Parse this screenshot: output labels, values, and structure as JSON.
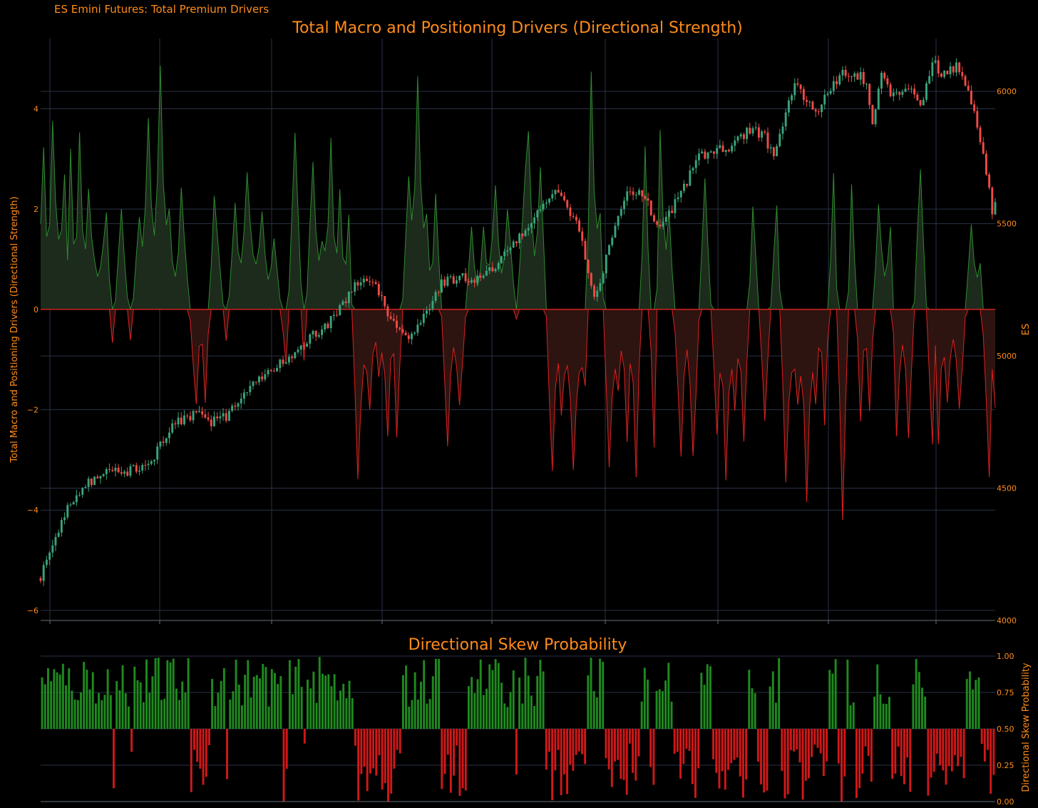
{
  "page": {
    "suptitle": "ES Emini Futures: Total Premium Drivers"
  },
  "colors": {
    "background": "#000000",
    "text": "#ff8c1a",
    "grid": "#2a3246",
    "positive": "#2e8b2e",
    "positive_fill": "#1c2b1c",
    "negative": "#e02020",
    "negative_fill": "#2e1410",
    "candle_up": "#3aa37a",
    "candle_down": "#ef4b46"
  },
  "chart_data": [
    {
      "type": "area",
      "title": "Total Macro and Positioning Drivers (Directional Strength)",
      "ylabel": "Total Macro and Positioning Drivers (Directional Strength)",
      "ylim": [
        -6.2,
        5.4
      ],
      "yticks": [
        4,
        2,
        0,
        -2,
        -4,
        -6
      ],
      "ytick_labels": [
        "4",
        "2",
        "0",
        "−2",
        "−4",
        "−6"
      ],
      "grid": true,
      "n_points": 320,
      "peaks": [
        {
          "i": 1,
          "v": 3.4
        },
        {
          "i": 4,
          "v": 4.0
        },
        {
          "i": 8,
          "v": 2.6
        },
        {
          "i": 10,
          "v": 3.3
        },
        {
          "i": 13,
          "v": 3.6
        },
        {
          "i": 16,
          "v": 2.3
        },
        {
          "i": 22,
          "v": 1.9
        },
        {
          "i": 24,
          "v": -0.7
        },
        {
          "i": 27,
          "v": 1.9
        },
        {
          "i": 30,
          "v": -0.6
        },
        {
          "i": 33,
          "v": 1.9
        },
        {
          "i": 36,
          "v": 3.8
        },
        {
          "i": 40,
          "v": 4.8
        },
        {
          "i": 43,
          "v": 2.0
        },
        {
          "i": 47,
          "v": 2.3
        },
        {
          "i": 52,
          "v": -1.9
        },
        {
          "i": 55,
          "v": -1.8
        },
        {
          "i": 58,
          "v": 2.2
        },
        {
          "i": 62,
          "v": -0.6
        },
        {
          "i": 65,
          "v": 2.0
        },
        {
          "i": 69,
          "v": 2.8
        },
        {
          "i": 74,
          "v": 2.0
        },
        {
          "i": 78,
          "v": 1.5
        },
        {
          "i": 82,
          "v": -1.1
        },
        {
          "i": 85,
          "v": 3.4
        },
        {
          "i": 88,
          "v": -1.0
        },
        {
          "i": 91,
          "v": 3.0
        },
        {
          "i": 94,
          "v": 1.4
        },
        {
          "i": 97,
          "v": 3.3
        },
        {
          "i": 100,
          "v": 2.5
        },
        {
          "i": 103,
          "v": 1.8
        },
        {
          "i": 106,
          "v": -3.3
        },
        {
          "i": 110,
          "v": -2.0
        },
        {
          "i": 113,
          "v": -1.3
        },
        {
          "i": 116,
          "v": -2.6
        },
        {
          "i": 119,
          "v": -2.4
        },
        {
          "i": 123,
          "v": 2.8
        },
        {
          "i": 126,
          "v": 4.9
        },
        {
          "i": 129,
          "v": 2.0
        },
        {
          "i": 132,
          "v": 2.3
        },
        {
          "i": 136,
          "v": -2.6
        },
        {
          "i": 140,
          "v": -2.0
        },
        {
          "i": 144,
          "v": 1.7
        },
        {
          "i": 148,
          "v": 1.6
        },
        {
          "i": 152,
          "v": 2.5
        },
        {
          "i": 156,
          "v": 2.0
        },
        {
          "i": 159,
          "v": -0.2
        },
        {
          "i": 163,
          "v": 3.7
        },
        {
          "i": 167,
          "v": 3.0
        },
        {
          "i": 171,
          "v": -3.3
        },
        {
          "i": 174,
          "v": -2.2
        },
        {
          "i": 178,
          "v": -3.2
        },
        {
          "i": 182,
          "v": -1.5
        },
        {
          "i": 184,
          "v": 4.6
        },
        {
          "i": 187,
          "v": 2.0
        },
        {
          "i": 190,
          "v": -3.3
        },
        {
          "i": 193,
          "v": -1.6
        },
        {
          "i": 196,
          "v": -2.5
        },
        {
          "i": 199,
          "v": -3.3
        },
        {
          "i": 202,
          "v": 3.2
        },
        {
          "i": 205,
          "v": -2.8
        },
        {
          "i": 207,
          "v": 3.7
        },
        {
          "i": 210,
          "v": 2.0
        },
        {
          "i": 214,
          "v": -2.9
        },
        {
          "i": 218,
          "v": -3.0
        },
        {
          "i": 222,
          "v": 2.6
        },
        {
          "i": 226,
          "v": -2.4
        },
        {
          "i": 229,
          "v": -3.5
        },
        {
          "i": 232,
          "v": -2.0
        },
        {
          "i": 235,
          "v": -2.7
        },
        {
          "i": 238,
          "v": 2.1
        },
        {
          "i": 242,
          "v": -2.1
        },
        {
          "i": 246,
          "v": 2.2
        },
        {
          "i": 249,
          "v": -3.3
        },
        {
          "i": 253,
          "v": -1.8
        },
        {
          "i": 256,
          "v": -3.8
        },
        {
          "i": 259,
          "v": -2.0
        },
        {
          "i": 262,
          "v": -2.3
        },
        {
          "i": 265,
          "v": 2.7
        },
        {
          "i": 268,
          "v": -4.1
        },
        {
          "i": 271,
          "v": 2.6
        },
        {
          "i": 274,
          "v": -2.2
        },
        {
          "i": 277,
          "v": -2.0
        },
        {
          "i": 280,
          "v": 2.2
        },
        {
          "i": 284,
          "v": 1.6
        },
        {
          "i": 286,
          "v": -2.6
        },
        {
          "i": 290,
          "v": -2.5
        },
        {
          "i": 294,
          "v": 2.8
        },
        {
          "i": 298,
          "v": -2.7
        },
        {
          "i": 300,
          "v": -2.6
        },
        {
          "i": 303,
          "v": -1.9
        },
        {
          "i": 307,
          "v": -2.1
        },
        {
          "i": 311,
          "v": 1.8
        },
        {
          "i": 314,
          "v": 0.9
        },
        {
          "i": 317,
          "v": -3.3
        },
        {
          "i": 319,
          "v": -1.9
        }
      ]
    },
    {
      "type": "line",
      "ylabel": "ES",
      "ylim": [
        4000,
        6200
      ],
      "yticks": [
        6000,
        5500,
        5000,
        4500,
        4000
      ],
      "ytick_labels": [
        "6000",
        "5500",
        "5000",
        "4500",
        "4000"
      ],
      "waypoints": [
        {
          "i": 0,
          "v": 4160
        },
        {
          "i": 5,
          "v": 4310
        },
        {
          "i": 10,
          "v": 4450
        },
        {
          "i": 15,
          "v": 4520
        },
        {
          "i": 20,
          "v": 4550
        },
        {
          "i": 26,
          "v": 4560
        },
        {
          "i": 32,
          "v": 4570
        },
        {
          "i": 38,
          "v": 4620
        },
        {
          "i": 44,
          "v": 4740
        },
        {
          "i": 52,
          "v": 4780
        },
        {
          "i": 57,
          "v": 4750
        },
        {
          "i": 62,
          "v": 4770
        },
        {
          "i": 68,
          "v": 4860
        },
        {
          "i": 75,
          "v": 4920
        },
        {
          "i": 82,
          "v": 4990
        },
        {
          "i": 88,
          "v": 5050
        },
        {
          "i": 95,
          "v": 5110
        },
        {
          "i": 100,
          "v": 5180
        },
        {
          "i": 103,
          "v": 5230
        },
        {
          "i": 108,
          "v": 5310
        },
        {
          "i": 113,
          "v": 5240
        },
        {
          "i": 118,
          "v": 5120
        },
        {
          "i": 123,
          "v": 5060
        },
        {
          "i": 128,
          "v": 5160
        },
        {
          "i": 134,
          "v": 5270
        },
        {
          "i": 140,
          "v": 5300
        },
        {
          "i": 146,
          "v": 5290
        },
        {
          "i": 152,
          "v": 5340
        },
        {
          "i": 158,
          "v": 5420
        },
        {
          "i": 163,
          "v": 5490
        },
        {
          "i": 168,
          "v": 5580
        },
        {
          "i": 172,
          "v": 5630
        },
        {
          "i": 176,
          "v": 5560
        },
        {
          "i": 180,
          "v": 5480
        },
        {
          "i": 185,
          "v": 5220
        },
        {
          "i": 188,
          "v": 5320
        },
        {
          "i": 192,
          "v": 5500
        },
        {
          "i": 196,
          "v": 5620
        },
        {
          "i": 202,
          "v": 5600
        },
        {
          "i": 206,
          "v": 5480
        },
        {
          "i": 210,
          "v": 5530
        },
        {
          "i": 215,
          "v": 5640
        },
        {
          "i": 220,
          "v": 5750
        },
        {
          "i": 226,
          "v": 5780
        },
        {
          "i": 232,
          "v": 5800
        },
        {
          "i": 237,
          "v": 5860
        },
        {
          "i": 242,
          "v": 5830
        },
        {
          "i": 245,
          "v": 5750
        },
        {
          "i": 248,
          "v": 5880
        },
        {
          "i": 252,
          "v": 6030
        },
        {
          "i": 256,
          "v": 5960
        },
        {
          "i": 260,
          "v": 5920
        },
        {
          "i": 264,
          "v": 6020
        },
        {
          "i": 268,
          "v": 6070
        },
        {
          "i": 273,
          "v": 6060
        },
        {
          "i": 276,
          "v": 6040
        },
        {
          "i": 278,
          "v": 5880
        },
        {
          "i": 281,
          "v": 6060
        },
        {
          "i": 285,
          "v": 5980
        },
        {
          "i": 290,
          "v": 6020
        },
        {
          "i": 294,
          "v": 5940
        },
        {
          "i": 298,
          "v": 6110
        },
        {
          "i": 302,
          "v": 6060
        },
        {
          "i": 306,
          "v": 6100
        },
        {
          "i": 310,
          "v": 6020
        },
        {
          "i": 313,
          "v": 5870
        },
        {
          "i": 316,
          "v": 5700
        },
        {
          "i": 318,
          "v": 5540
        },
        {
          "i": 320,
          "v": 5610
        }
      ]
    },
    {
      "type": "bar",
      "title": "Directional Skew Probability",
      "ylabel": "Directional Skew Probability",
      "ylim": [
        0,
        1
      ],
      "baseline": 0.5,
      "yticks": [
        1.0,
        0.75,
        0.5,
        0.25,
        0.0
      ],
      "ytick_labels": [
        "1.00",
        "0.75",
        "0.50",
        "0.25",
        "0.00"
      ],
      "grid": true,
      "n_bars": 320
    }
  ]
}
